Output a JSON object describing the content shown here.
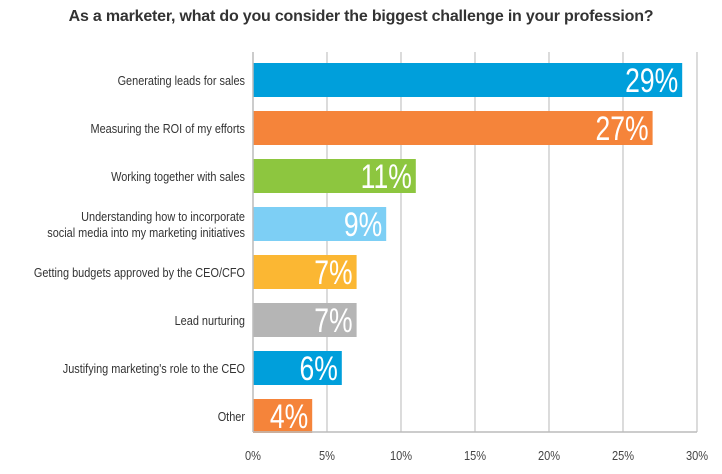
{
  "chart_data": {
    "type": "bar",
    "orientation": "horizontal",
    "title": "As a marketer, what do you consider the biggest challenge in your profession?",
    "categories": [
      [
        "Generating leads for sales"
      ],
      [
        "Measuring the ROI of my efforts"
      ],
      [
        "Working together with sales"
      ],
      [
        "Understanding how to incorporate",
        "social media into my marketing initiatives"
      ],
      [
        "Getting budgets approved by the CEO/CFO"
      ],
      [
        "Lead nurturing"
      ],
      [
        "Justifying marketing's role to the CEO"
      ],
      [
        "Other"
      ]
    ],
    "values": [
      29,
      27,
      11,
      9,
      7,
      7,
      6,
      4
    ],
    "value_labels": [
      "29%",
      "27%",
      "11%",
      "9%",
      "7%",
      "7%",
      "6%",
      "4%"
    ],
    "colors": [
      "#009fdb",
      "#f5843a",
      "#8dc63f",
      "#7dcff5",
      "#fbb733",
      "#b5b5b5",
      "#009fdb",
      "#f5843a"
    ],
    "xlim": [
      0,
      30
    ],
    "xticks": [
      0,
      5,
      10,
      15,
      20,
      25,
      30
    ],
    "xtick_labels": [
      "0%",
      "5%",
      "10%",
      "15%",
      "20%",
      "25%",
      "30%"
    ],
    "grid": "vertical",
    "grid_color": "#c8c8c8"
  }
}
